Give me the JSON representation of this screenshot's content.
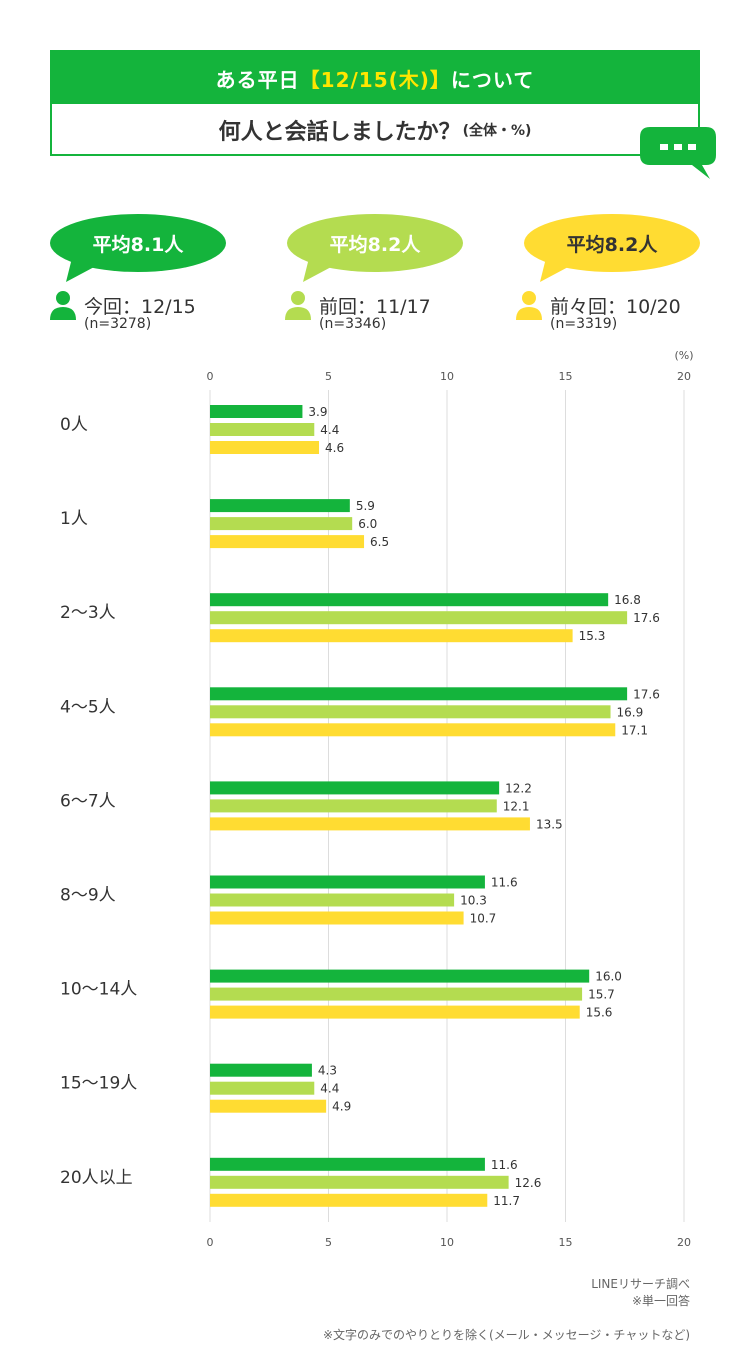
{
  "title": {
    "line1_prefix": "ある平日",
    "line1_highlight": "【12/15(木)】",
    "line1_suffix": "について",
    "line2_main": "何人と会話しましたか？",
    "line2_note": "(全体・%)"
  },
  "averages": [
    {
      "label": "平均8.1人",
      "color": "#14b43c",
      "text_color": "#ffffff"
    },
    {
      "label": "平均8.2人",
      "color": "#b4dc50",
      "text_color": "#ffffff"
    },
    {
      "label": "平均8.2人",
      "color": "#ffdc32",
      "text_color": "#333333"
    }
  ],
  "legend": [
    {
      "label": "今回：12/15",
      "n": "(n=3278)",
      "color": "#14b43c"
    },
    {
      "label": "前回：11/17",
      "n": "(n=3346)",
      "color": "#b4dc50"
    },
    {
      "label": "前々回：10/20",
      "n": "(n=3319)",
      "color": "#ffdc32"
    }
  ],
  "chart_data": {
    "type": "bar",
    "orientation": "horizontal",
    "unit_label": "(%)",
    "xlim": [
      0,
      20
    ],
    "xticks": [
      "0",
      "5",
      "10",
      "15",
      "20"
    ],
    "grid": true,
    "categories": [
      "0人",
      "1人",
      "2〜3人",
      "4〜5人",
      "6〜7人",
      "8〜9人",
      "10〜14人",
      "15〜19人",
      "20人以上"
    ],
    "series": [
      {
        "name": "今回：12/15",
        "color": "#14b43c",
        "values": [
          3.9,
          5.9,
          16.8,
          17.6,
          12.2,
          11.6,
          16.0,
          4.3,
          11.6
        ],
        "labels": [
          "3.9",
          "5.9",
          "16.8",
          "17.6",
          "12.2",
          "11.6",
          "16.0",
          "4.3",
          "11.6"
        ]
      },
      {
        "name": "前回：11/17",
        "color": "#b4dc50",
        "values": [
          4.4,
          6.0,
          17.6,
          16.9,
          12.1,
          10.3,
          15.7,
          4.4,
          12.6
        ],
        "labels": [
          "4.4",
          "6.0",
          "17.6",
          "16.9",
          "12.1",
          "10.3",
          "15.7",
          "4.4",
          "12.6"
        ]
      },
      {
        "name": "前々回：10/20",
        "color": "#ffdc32",
        "values": [
          4.6,
          6.5,
          15.3,
          17.1,
          13.5,
          10.7,
          15.6,
          4.9,
          11.7
        ],
        "labels": [
          "4.6",
          "6.5",
          "15.3",
          "17.1",
          "13.5",
          "10.7",
          "15.6",
          "4.9",
          "11.7"
        ]
      }
    ]
  },
  "footnotes": {
    "source": "LINEリサーチ調べ",
    "single_answer": "※単一回答",
    "exclusion": "※文字のみでのやりとりを除く(メール・メッセージ・チャットなど)"
  }
}
